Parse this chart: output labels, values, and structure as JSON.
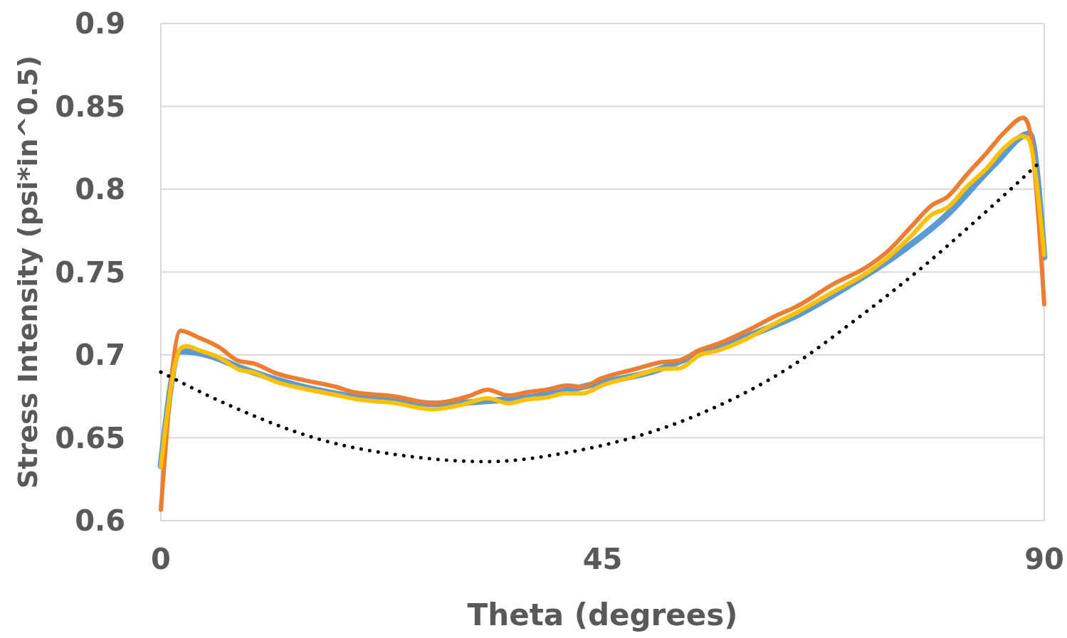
{
  "chart_data": {
    "type": "line",
    "xlabel": "Theta (degrees)",
    "ylabel": "Stress Intensity (psi*in^0.5)",
    "xlim": [
      0,
      90
    ],
    "xticks": [
      0,
      45,
      90
    ],
    "ylim": [
      0.6,
      0.9
    ],
    "yticks": [
      0.6,
      0.65,
      0.7,
      0.75,
      0.8,
      0.85,
      0.9
    ],
    "grid": "y",
    "line_style": "solid",
    "series": [
      {
        "color": "#5b9bd5",
        "x": [
          0,
          2,
          5,
          8,
          11,
          15,
          20,
          25,
          28,
          31,
          34,
          37,
          41,
          45,
          50,
          55,
          60,
          65,
          70,
          75,
          80,
          85,
          88.5,
          90
        ],
        "values": [
          0.633,
          0.7022,
          0.6995,
          0.6925,
          0.6865,
          0.68,
          0.6745,
          0.6715,
          0.6705,
          0.6712,
          0.6725,
          0.674,
          0.678,
          0.6835,
          0.6898,
          0.701,
          0.7118,
          0.7245,
          0.7415,
          0.7605,
          0.784,
          0.8155,
          0.8335,
          0.759
        ]
      },
      {
        "color": "#ed7d31",
        "x": [
          0,
          2,
          3.8,
          5.95,
          7.8,
          9.6,
          11.7,
          14.7,
          17.8,
          19.6,
          23.8,
          27.7,
          31.3,
          33.3,
          35.4,
          37.4,
          39.2,
          41.4,
          42.9,
          44.9,
          48.1,
          51,
          52.8,
          54.9,
          56.8,
          59.8,
          63,
          64.6,
          68.5,
          72.1,
          74,
          76.4,
          78.5,
          80.2,
          82.1,
          84.1,
          86,
          87.9,
          88.4,
          90
        ],
        "values": [
          0.6065,
          0.7146,
          0.7106,
          0.7046,
          0.6967,
          0.6946,
          0.689,
          0.6846,
          0.6808,
          0.6776,
          0.675,
          0.671,
          0.675,
          0.679,
          0.6755,
          0.6776,
          0.6789,
          0.6815,
          0.6807,
          0.6859,
          0.6911,
          0.6956,
          0.6967,
          0.703,
          0.7068,
          0.7148,
          0.7246,
          0.7287,
          0.7427,
          0.7538,
          0.7622,
          0.7771,
          0.7901,
          0.7957,
          0.8087,
          0.8217,
          0.8347,
          0.8431,
          0.8385,
          0.7306
        ]
      },
      {
        "color": "#ffc000",
        "x": [
          0,
          2,
          2.6,
          3.8,
          5.9,
          8.1,
          9.3,
          11.7,
          14.7,
          17.8,
          19.9,
          23.8,
          27.7,
          30.7,
          33.3,
          35.4,
          37.4,
          39.2,
          41.3,
          42.9,
          45.2,
          48.1,
          51,
          52.8,
          54.9,
          56.8,
          59.8,
          63,
          64.6,
          68.5,
          72.1,
          74,
          76.4,
          78.5,
          80.2,
          82.1,
          84.1,
          86,
          87.8,
          88.3,
          90
        ],
        "values": [
          0.6325,
          0.7038,
          0.7054,
          0.703,
          0.6985,
          0.6908,
          0.6896,
          0.6838,
          0.6794,
          0.6759,
          0.6733,
          0.671,
          0.6672,
          0.67,
          0.6738,
          0.6708,
          0.6733,
          0.6742,
          0.6768,
          0.6767,
          0.6822,
          0.6869,
          0.6915,
          0.6919,
          0.6999,
          0.7027,
          0.7101,
          0.7203,
          0.725,
          0.738,
          0.7501,
          0.7585,
          0.7715,
          0.7845,
          0.7892,
          0.8013,
          0.8124,
          0.8254,
          0.832,
          0.831,
          0.7603
        ]
      },
      {
        "color": "#000000",
        "line_style": "dotted",
        "x": [
          0,
          7.2,
          16.2,
          25.3,
          33.1,
          41.6,
          54.6,
          64.3,
          70.8,
          77.2,
          83.7,
          89.7
        ],
        "values": [
          0.6896,
          0.669,
          0.649,
          0.6388,
          0.6356,
          0.6413,
          0.6636,
          0.6934,
          0.7213,
          0.751,
          0.7845,
          0.8171
        ]
      }
    ]
  }
}
